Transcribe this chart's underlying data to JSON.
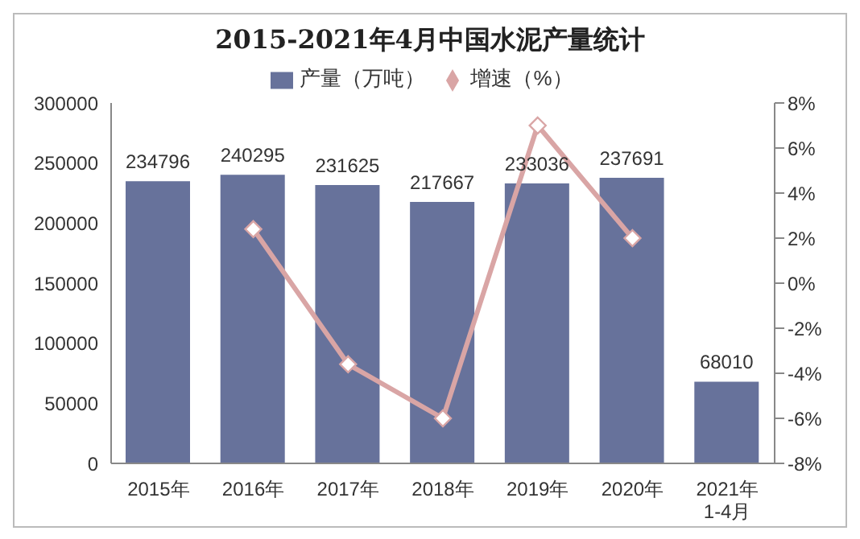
{
  "chart_data": {
    "type": "bar",
    "title": "2015-2021年4月中国水泥产量统计",
    "categories": [
      "2015年",
      "2016年",
      "2017年",
      "2018年",
      "2019年",
      "2020年",
      "2021年\n1-4月"
    ],
    "series": [
      {
        "name": "产量（万吨）",
        "color": "#67729b",
        "values": [
          234796,
          240295,
          231625,
          217667,
          233036,
          237691,
          68010
        ],
        "value_labels": [
          "234796",
          "240295",
          "231625",
          "217667",
          "233036",
          "237691",
          "68010"
        ]
      },
      {
        "name": "增速（%）",
        "type": "line",
        "axis": "y2",
        "color": "#d9a5a5",
        "marker": "diamond",
        "values": [
          null,
          2.4,
          -3.6,
          -6.0,
          7.0,
          2.0,
          null
        ]
      }
    ],
    "ylim": [
      0,
      300000
    ],
    "yticks": [
      0,
      50000,
      100000,
      150000,
      200000,
      250000,
      300000
    ],
    "y2lim": [
      -8,
      8
    ],
    "y2ticks": [
      {
        "value": -8,
        "label": "-8%"
      },
      {
        "value": -6,
        "label": "-6%"
      },
      {
        "value": -4,
        "label": "-4%"
      },
      {
        "value": -2,
        "label": "-2%"
      },
      {
        "value": 0,
        "label": "0%"
      },
      {
        "value": 2,
        "label": "2%"
      },
      {
        "value": 4,
        "label": "4%"
      },
      {
        "value": 6,
        "label": "6%"
      },
      {
        "value": 8,
        "label": "8%"
      }
    ],
    "legend": "top"
  }
}
